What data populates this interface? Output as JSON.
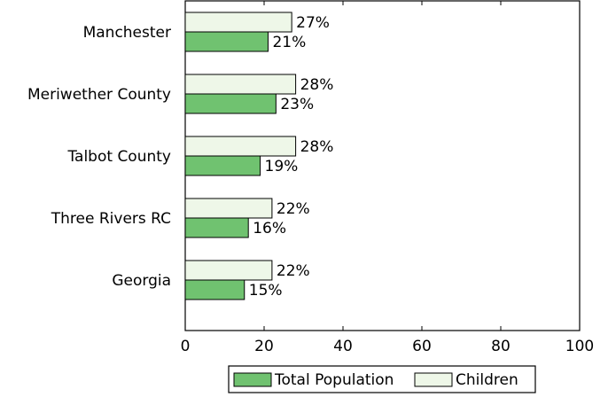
{
  "chart_data": {
    "type": "bar",
    "orientation": "horizontal",
    "categories": [
      "Manchester",
      "Meriwether County",
      "Talbot County",
      "Three Rivers RC",
      "Georgia"
    ],
    "series": [
      {
        "name": "Children",
        "values": [
          27,
          28,
          28,
          22,
          22
        ],
        "labels": [
          "27%",
          "28%",
          "28%",
          "22%",
          "22%"
        ],
        "color": "#eef7e8"
      },
      {
        "name": "Total Population",
        "values": [
          21,
          23,
          19,
          16,
          15
        ],
        "labels": [
          "21%",
          "23%",
          "19%",
          "16%",
          "15%"
        ],
        "color": "#70c270"
      }
    ],
    "xlim": [
      0,
      100
    ],
    "xticks": [
      0,
      20,
      40,
      60,
      80,
      100
    ],
    "xtick_labels": [
      "0",
      "20",
      "40",
      "60",
      "80",
      "100"
    ],
    "grid": false,
    "legend": {
      "placement": "bottom-center",
      "entries": [
        {
          "name": "Total Population",
          "color": "#70c270"
        },
        {
          "name": "Children",
          "color": "#eef7e8"
        }
      ]
    }
  }
}
